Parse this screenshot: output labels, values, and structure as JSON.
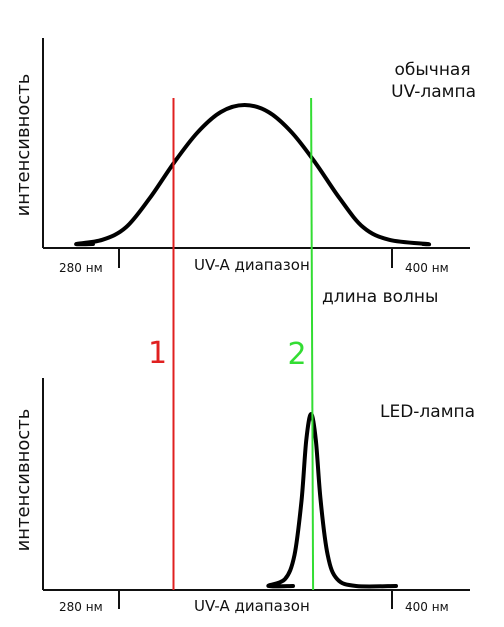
{
  "chart_data": [
    {
      "type": "line",
      "panel": "top",
      "title": "обычная\nUV-лампа",
      "ylabel": "интенсивность",
      "xlabel": "длина волны",
      "x_range_label": "UV-A диапазон",
      "ticks": [
        "280 нм",
        "400 нм"
      ],
      "xlim": [
        260,
        440
      ],
      "series": [
        {
          "x": [
            260,
            274,
            285,
            295,
            305,
            315,
            325,
            335,
            345,
            355,
            365,
            375,
            385,
            395,
            406,
            422,
            440
          ],
          "y": [
            0.0,
            0.0,
            0.03,
            0.12,
            0.33,
            0.58,
            0.8,
            0.95,
            1.0,
            0.95,
            0.8,
            0.58,
            0.33,
            0.12,
            0.03,
            0.0,
            0.0
          ]
        }
      ],
      "markers": [
        {
          "label": "1",
          "x": 315,
          "color": "#e02020"
        },
        {
          "label": "2",
          "x": 373,
          "color": "#33dd33"
        }
      ]
    },
    {
      "type": "line",
      "panel": "bottom",
      "title": "LED-лампа",
      "ylabel": "интенсивность",
      "x_range_label": "UV-A диапазон",
      "ticks": [
        "280 нм",
        "400 нм"
      ],
      "xlim": [
        260,
        440
      ],
      "series": [
        {
          "x": [
            260,
            355,
            362,
            366,
            369,
            371,
            373,
            375,
            377,
            380,
            384,
            392,
            440
          ],
          "y": [
            0.0,
            0.0,
            0.04,
            0.18,
            0.5,
            0.85,
            1.0,
            0.85,
            0.5,
            0.18,
            0.04,
            0.0,
            0.0
          ]
        }
      ]
    }
  ]
}
